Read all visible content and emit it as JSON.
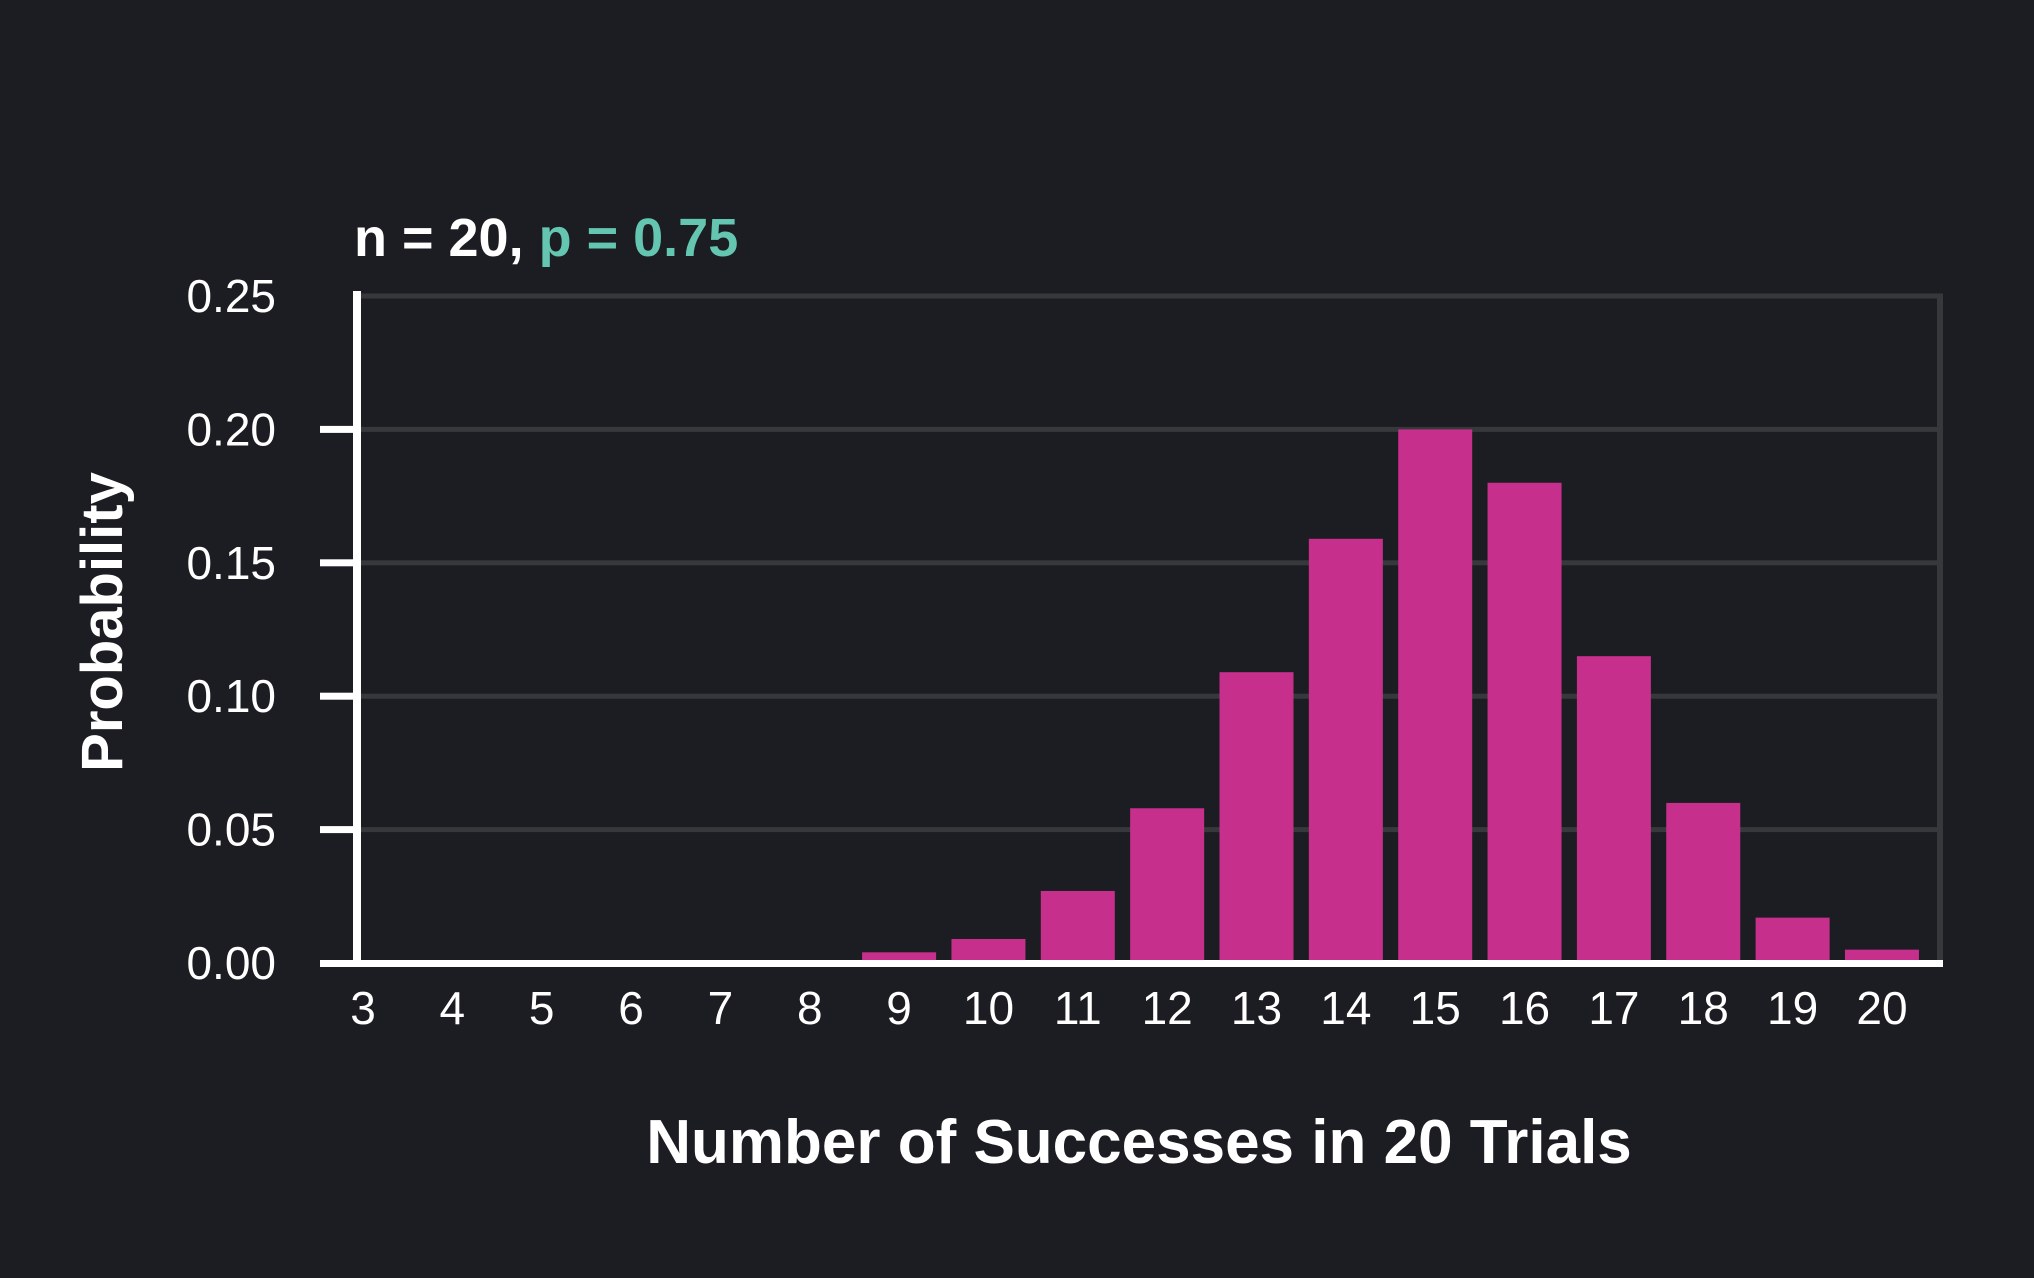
{
  "title": {
    "part_n": "n = 20, ",
    "part_p": "p = 0.75"
  },
  "chart_data": {
    "type": "bar",
    "title": "n = 20, p = 0.75",
    "xlabel": "Number of Successes in 20 Trials",
    "ylabel": "Probability",
    "categories": [
      3,
      4,
      5,
      6,
      7,
      8,
      9,
      10,
      11,
      12,
      13,
      14,
      15,
      16,
      17,
      18,
      19,
      20
    ],
    "values": [
      0,
      0,
      0,
      0,
      0,
      0,
      0.004,
      0.009,
      0.027,
      0.058,
      0.109,
      0.159,
      0.2,
      0.18,
      0.115,
      0.06,
      0.017,
      0.005
    ],
    "y_ticks": [
      0.0,
      0.05,
      0.1,
      0.15,
      0.2,
      0.25
    ],
    "y_tick_labels": [
      "0.00",
      "0.05",
      "0.10",
      "0.15",
      "0.20",
      "0.25"
    ],
    "ylim": [
      0,
      0.25
    ],
    "grid": "horizontal",
    "legend": "none",
    "colors": {
      "background": "#1c1d22",
      "bar": "#c72f8d",
      "accent_teal": "#64c6b1",
      "gridline": "#37383c",
      "axis": "#ffffff",
      "text": "#ffffff"
    }
  }
}
